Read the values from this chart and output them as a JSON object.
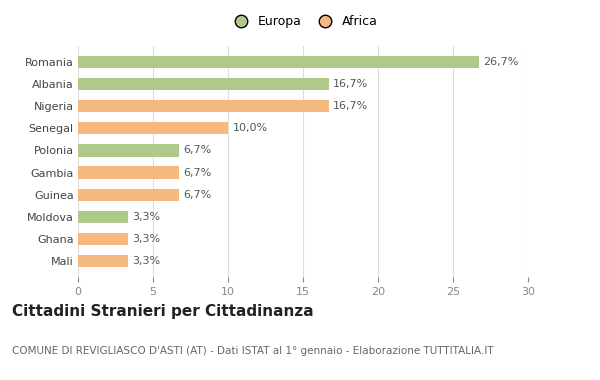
{
  "categories": [
    "Romania",
    "Albania",
    "Nigeria",
    "Senegal",
    "Polonia",
    "Gambia",
    "Guinea",
    "Moldova",
    "Ghana",
    "Mali"
  ],
  "values": [
    26.7,
    16.7,
    16.7,
    10.0,
    6.7,
    6.7,
    6.7,
    3.3,
    3.3,
    3.3
  ],
  "labels": [
    "26,7%",
    "16,7%",
    "16,7%",
    "10,0%",
    "6,7%",
    "6,7%",
    "6,7%",
    "3,3%",
    "3,3%",
    "3,3%"
  ],
  "colors": [
    "#aec98a",
    "#aec98a",
    "#f5b97f",
    "#f5b97f",
    "#aec98a",
    "#f5b97f",
    "#f5b97f",
    "#aec98a",
    "#f5b97f",
    "#f5b97f"
  ],
  "legend": [
    {
      "label": "Europa",
      "color": "#aec98a"
    },
    {
      "label": "Africa",
      "color": "#f5b97f"
    }
  ],
  "title": "Cittadini Stranieri per Cittadinanza",
  "subtitle": "COMUNE DI REVIGLIASCO D'ASTI (AT) - Dati ISTAT al 1° gennaio - Elaborazione TUTTITALIA.IT",
  "xlim": [
    0,
    30
  ],
  "xticks": [
    0,
    5,
    10,
    15,
    20,
    25,
    30
  ],
  "background_color": "#ffffff",
  "grid_color": "#dddddd",
  "bar_height": 0.55,
  "title_fontsize": 11,
  "subtitle_fontsize": 7.5,
  "label_fontsize": 8,
  "tick_fontsize": 8,
  "legend_fontsize": 9
}
